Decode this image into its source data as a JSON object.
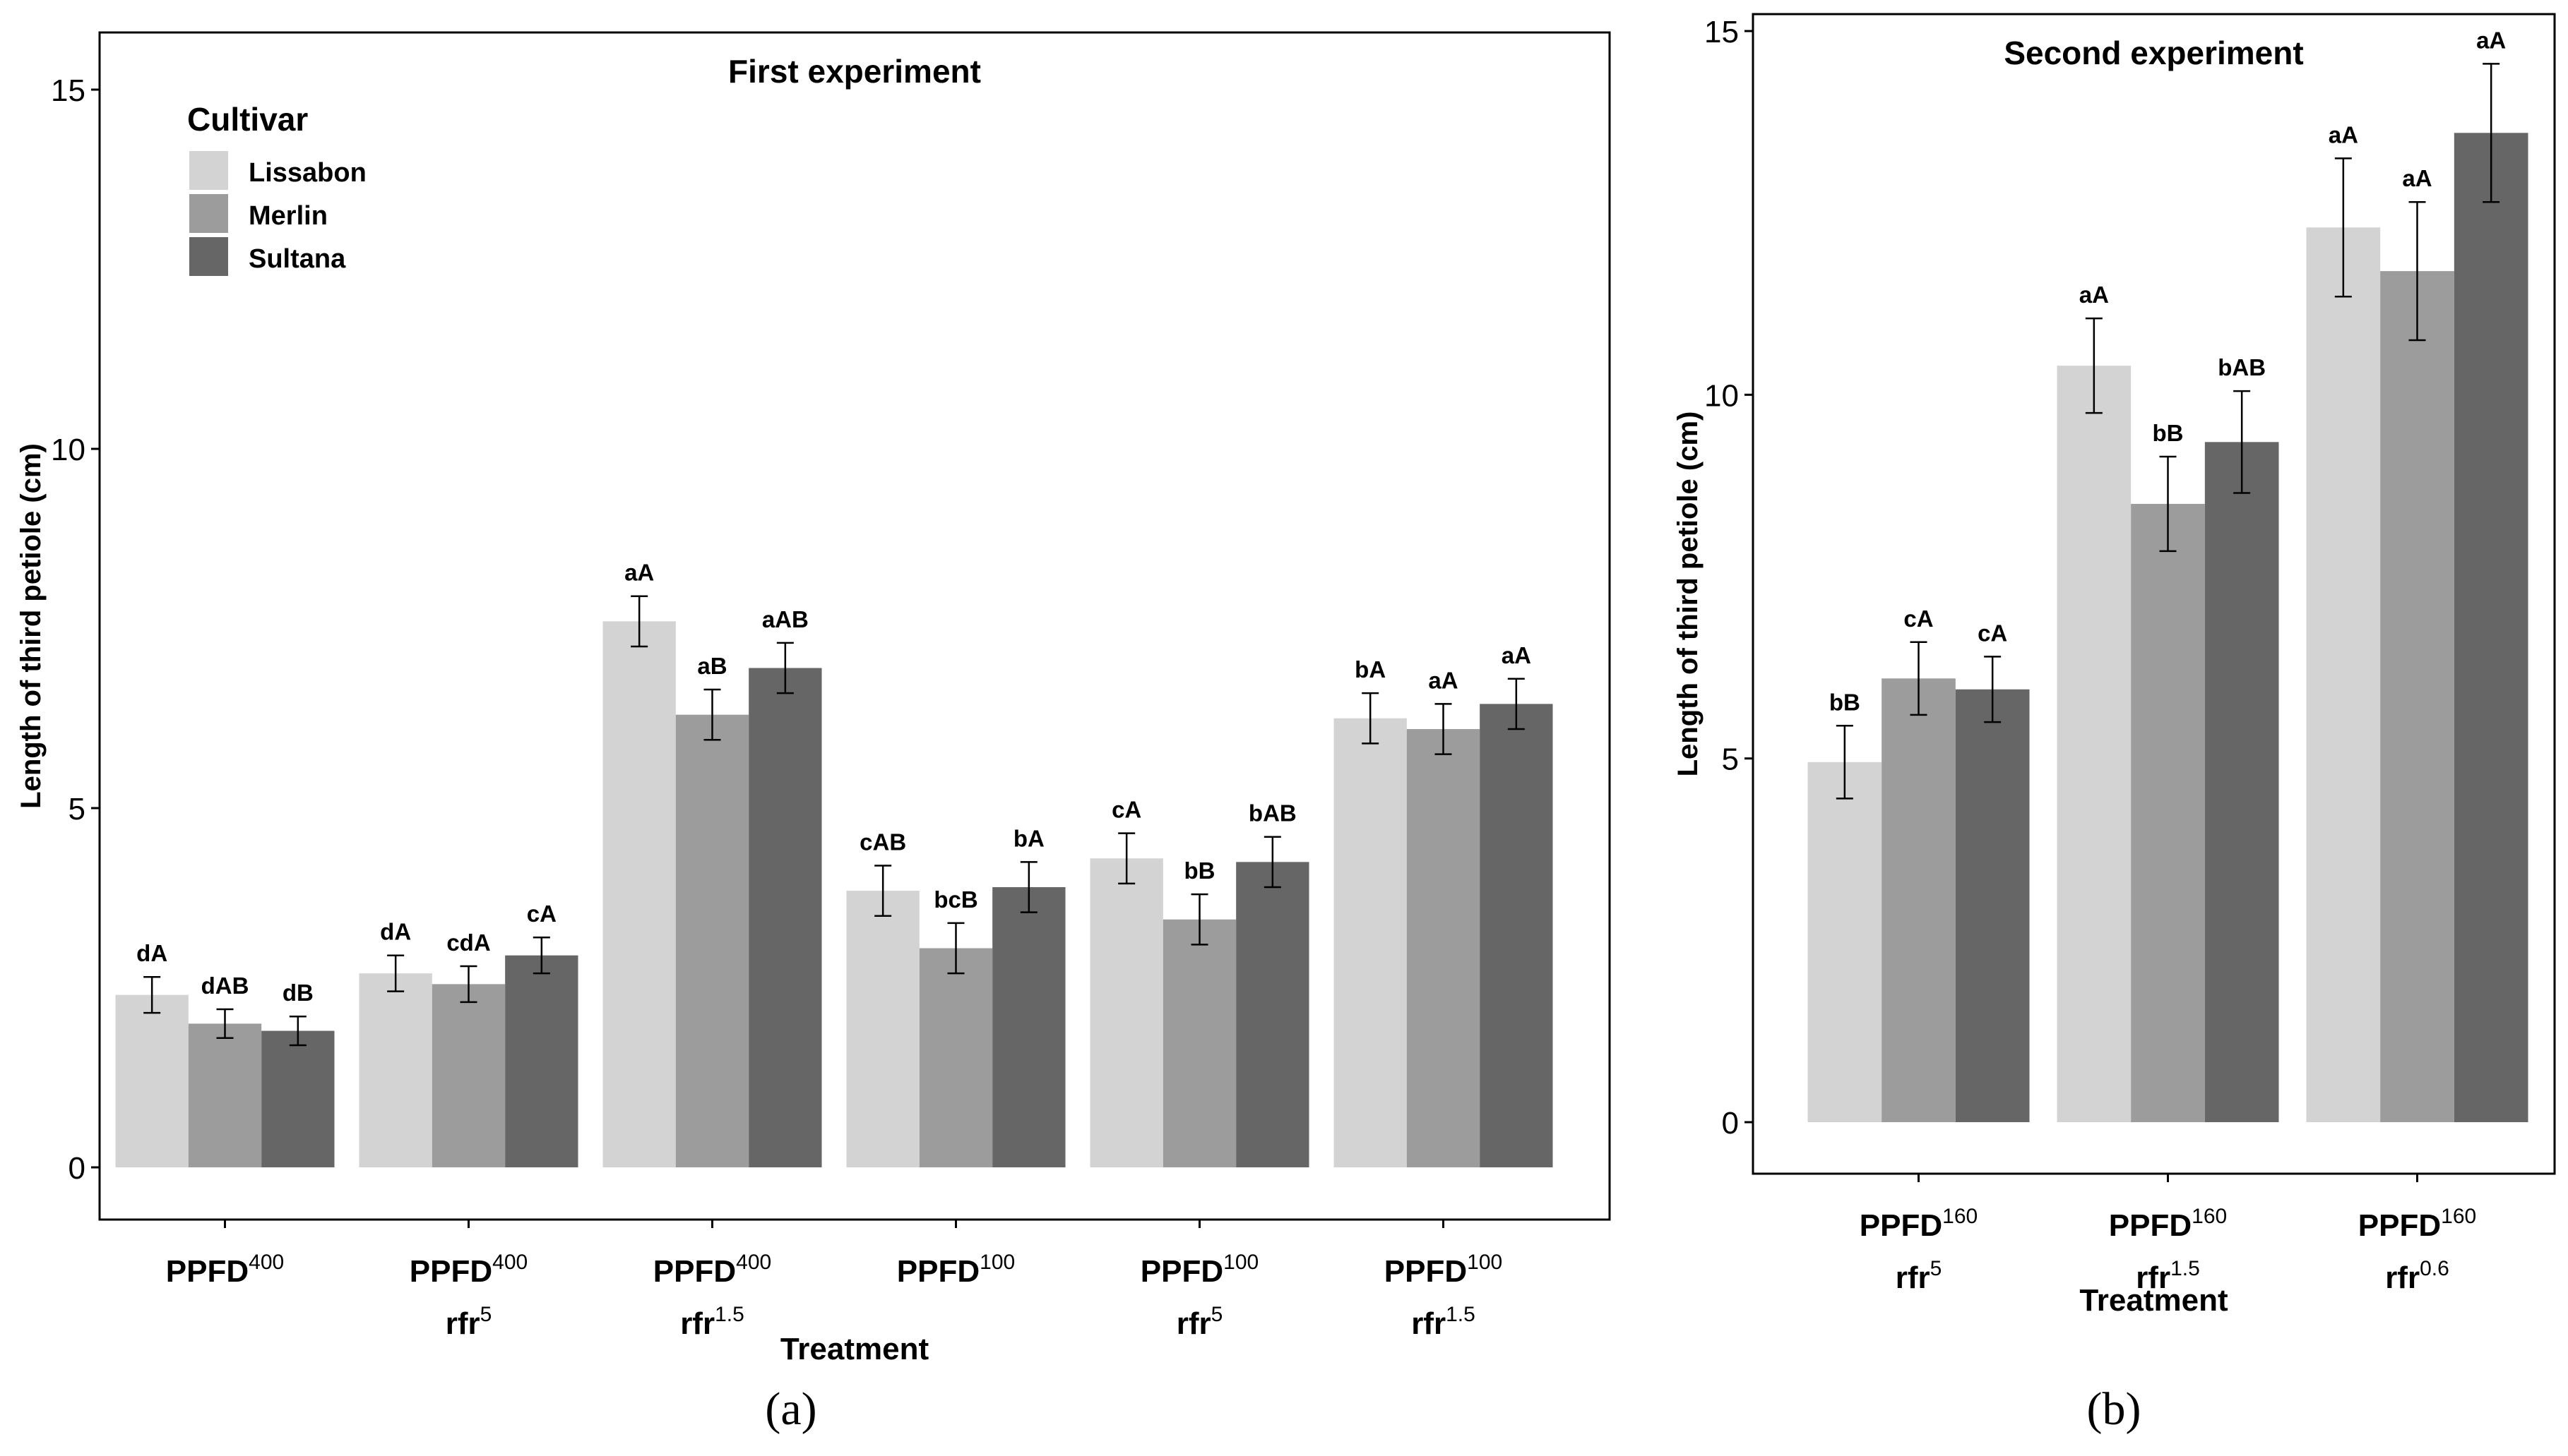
{
  "legend": {
    "title": "Cultivar",
    "entries": [
      {
        "name": "Lissabon",
        "color": "#d3d3d3"
      },
      {
        "name": "Merlin",
        "color": "#9c9c9c"
      },
      {
        "name": "Sultana",
        "color": "#666666"
      }
    ]
  },
  "chart_data": [
    {
      "type": "bar",
      "title": "First experiment",
      "xlabel": "Treatment",
      "ylabel": "Length of third petiole (cm)",
      "ylim": [
        0,
        15
      ],
      "yticks": [
        0,
        5,
        10,
        15
      ],
      "legend_position": "top-left",
      "categories": [
        {
          "line1": "PPFD",
          "sup1": "400",
          "line2": "",
          "sup2": ""
        },
        {
          "line1": "PPFD",
          "sup1": "400",
          "line2": "rfr",
          "sup2": "5"
        },
        {
          "line1": "PPFD",
          "sup1": "400",
          "line2": "rfr",
          "sup2": "1.5"
        },
        {
          "line1": "PPFD",
          "sup1": "100",
          "line2": "",
          "sup2": ""
        },
        {
          "line1": "PPFD",
          "sup1": "100",
          "line2": "rfr",
          "sup2": "5"
        },
        {
          "line1": "PPFD",
          "sup1": "100",
          "line2": "rfr",
          "sup2": "1.5"
        }
      ],
      "series": [
        {
          "name": "Lissabon",
          "values": [
            2.4,
            2.7,
            7.6,
            3.85,
            4.3,
            6.25
          ],
          "errors": [
            0.25,
            0.25,
            0.35,
            0.35,
            0.35,
            0.35
          ],
          "labels": [
            "dA",
            "dA",
            "aA",
            "cAB",
            "cA",
            "bA"
          ]
        },
        {
          "name": "Merlin",
          "values": [
            2.0,
            2.55,
            6.3,
            3.05,
            3.45,
            6.1
          ],
          "errors": [
            0.2,
            0.25,
            0.35,
            0.35,
            0.35,
            0.35
          ],
          "labels": [
            "dAB",
            "cdA",
            "aB",
            "bcB",
            "bB",
            "aA"
          ]
        },
        {
          "name": "Sultana",
          "values": [
            1.9,
            2.95,
            6.95,
            3.9,
            4.25,
            6.45
          ],
          "errors": [
            0.2,
            0.25,
            0.35,
            0.35,
            0.35,
            0.35
          ],
          "labels": [
            "dB",
            "cA",
            "aAB",
            "bA",
            "bAB",
            "aA"
          ]
        }
      ]
    },
    {
      "type": "bar",
      "title": "Second experiment",
      "xlabel": "Treatment",
      "ylabel": "Length of third petiole (cm)",
      "ylim": [
        0,
        15
      ],
      "yticks": [
        0,
        5,
        10,
        15
      ],
      "categories": [
        {
          "line1": "PPFD",
          "sup1": "160",
          "line2": "rfr",
          "sup2": "5"
        },
        {
          "line1": "PPFD",
          "sup1": "160",
          "line2": "rfr",
          "sup2": "1.5"
        },
        {
          "line1": "PPFD",
          "sup1": "160",
          "line2": "rfr",
          "sup2": "0.6"
        }
      ],
      "series": [
        {
          "name": "Lissabon",
          "values": [
            4.95,
            10.4,
            12.3
          ],
          "errors": [
            0.5,
            0.65,
            0.95
          ],
          "labels": [
            "bB",
            "aA",
            "aA"
          ]
        },
        {
          "name": "Merlin",
          "values": [
            6.1,
            8.5,
            11.7
          ],
          "errors": [
            0.5,
            0.65,
            0.95
          ],
          "labels": [
            "cA",
            "bB",
            "aA"
          ]
        },
        {
          "name": "Sultana",
          "values": [
            5.95,
            9.35,
            13.6
          ],
          "errors": [
            0.45,
            0.7,
            0.95
          ],
          "labels": [
            "cA",
            "bAB",
            "aA"
          ]
        }
      ]
    }
  ],
  "captions": [
    "(a)",
    "(b)"
  ]
}
